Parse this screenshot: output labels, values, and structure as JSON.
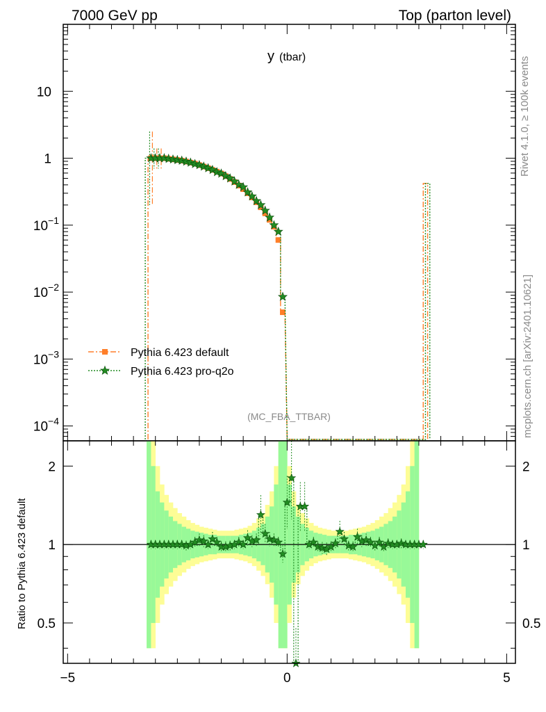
{
  "header": {
    "left": "7000 GeV pp",
    "right": "Top (parton level)"
  },
  "side": {
    "version": "Rivet 4.1.0, ≥ 100k events",
    "source": "mcplots.cern.ch [arXiv:2401.10621]"
  },
  "plot_title": {
    "main": "y",
    "sub": "(tbar)"
  },
  "analysis_label": "(MC_FBA_TTBAR)",
  "colors": {
    "default": "#ff7f2a",
    "proq2o": "#228b22",
    "band_inner": "#98f998",
    "band_outer": "#fdfd96"
  },
  "chart_data": [
    {
      "type": "line",
      "panel": "main",
      "title": "y (tbar)",
      "yscale": "log",
      "xlim": [
        -5.1,
        5.2
      ],
      "ylim": [
        6e-05,
        100
      ],
      "yticks": [
        {
          "value": 0.0001,
          "base": "10",
          "exp": "−4"
        },
        {
          "value": 0.001,
          "base": "10",
          "exp": "−3"
        },
        {
          "value": 0.01,
          "base": "10",
          "exp": "−2"
        },
        {
          "value": 0.1,
          "base": "10",
          "exp": "−1"
        },
        {
          "value": 1,
          "base": "1",
          "exp": ""
        },
        {
          "value": 10,
          "base": "10",
          "exp": ""
        }
      ],
      "legend": [
        "Pythia 6.423 default",
        "Pythia 6.423 pro-q2o"
      ],
      "series": [
        {
          "name": "Pythia 6.423 default",
          "style": "dash-dot",
          "marker": "square",
          "x": [
            -3.1,
            -3.0,
            -2.9,
            -2.8,
            -2.7,
            -2.6,
            -2.5,
            -2.4,
            -2.3,
            -2.2,
            -2.1,
            -2.0,
            -1.9,
            -1.8,
            -1.7,
            -1.6,
            -1.5,
            -1.4,
            -1.3,
            -1.2,
            -1.1,
            -1.0,
            -0.9,
            -0.8,
            -0.7,
            -0.6,
            -0.5,
            -0.4,
            -0.3,
            -0.2,
            -0.1
          ],
          "y": [
            1.0,
            1.0,
            1.0,
            1.0,
            0.98,
            0.96,
            0.94,
            0.92,
            0.89,
            0.86,
            0.83,
            0.79,
            0.75,
            0.71,
            0.67,
            0.63,
            0.59,
            0.54,
            0.49,
            0.44,
            0.39,
            0.345,
            0.3,
            0.26,
            0.22,
            0.185,
            0.15,
            0.12,
            0.095,
            0.06,
            0.005
          ],
          "spike": {
            "x": 3.15,
            "y": 0.42
          }
        },
        {
          "name": "Pythia 6.423 pro-q2o",
          "style": "dotted",
          "marker": "star",
          "x": [
            -3.1,
            -3.0,
            -2.9,
            -2.8,
            -2.7,
            -2.6,
            -2.5,
            -2.4,
            -2.3,
            -2.2,
            -2.1,
            -2.0,
            -1.9,
            -1.8,
            -1.7,
            -1.6,
            -1.5,
            -1.4,
            -1.3,
            -1.2,
            -1.1,
            -1.0,
            -0.9,
            -0.8,
            -0.7,
            -0.6,
            -0.5,
            -0.4,
            -0.3,
            -0.2,
            -0.1
          ],
          "y": [
            1.0,
            1.0,
            1.0,
            1.0,
            0.98,
            0.96,
            0.94,
            0.92,
            0.89,
            0.86,
            0.82,
            0.79,
            0.75,
            0.71,
            0.67,
            0.62,
            0.59,
            0.54,
            0.5,
            0.45,
            0.4,
            0.37,
            0.31,
            0.27,
            0.23,
            0.2,
            0.165,
            0.13,
            0.1,
            0.08,
            0.0085
          ],
          "spike": {
            "x": 3.2,
            "y": 0.42
          }
        }
      ]
    },
    {
      "type": "line",
      "panel": "ratio",
      "ylabel": "Ratio to Pythia 6.423 default",
      "yscale": "log",
      "xlim": [
        -5.1,
        5.2
      ],
      "ylim": [
        0.35,
        2.5
      ],
      "yticks": [
        {
          "value": 0.5,
          "label": "0.5"
        },
        {
          "value": 1,
          "label": "1"
        },
        {
          "value": 2,
          "label": "2"
        }
      ],
      "xticks": [
        {
          "value": -5,
          "label": "−5"
        },
        {
          "value": 0,
          "label": "0"
        },
        {
          "value": 5,
          "label": "5"
        }
      ],
      "bands": {
        "x_edges": [
          -3.2,
          -3.1,
          -3.0,
          -2.9,
          -2.8,
          -2.7,
          -2.6,
          -2.5,
          -2.4,
          -2.3,
          -2.2,
          -2.1,
          -2.0,
          -1.9,
          -1.8,
          -1.7,
          -1.6,
          -1.5,
          -1.4,
          -1.3,
          -1.2,
          -1.1,
          -1.0,
          -0.9,
          -0.8,
          -0.7,
          -0.6,
          -0.5,
          -0.4,
          -0.3,
          -0.2,
          -0.1,
          0.0,
          0.1,
          0.2,
          0.3,
          0.4,
          0.5,
          0.6,
          0.7,
          0.8,
          0.9,
          1.0,
          1.1,
          1.2,
          1.3,
          1.4,
          1.5,
          1.6,
          1.7,
          1.8,
          1.9,
          2.0,
          2.1,
          2.2,
          2.3,
          2.4,
          2.5,
          2.6,
          2.7,
          2.8,
          2.9,
          3.0,
          3.1,
          3.2
        ],
        "inner": [
          2.5,
          2.0,
          1.6,
          1.45,
          1.35,
          1.28,
          1.23,
          1.2,
          1.17,
          1.15,
          1.13,
          1.12,
          1.11,
          1.1,
          1.09,
          1.09,
          1.08,
          1.08,
          1.08,
          1.08,
          1.08,
          1.09,
          1.1,
          1.11,
          1.13,
          1.16,
          1.2,
          1.28,
          1.4,
          1.7,
          2.5,
          2.5,
          1.7,
          1.4,
          1.28,
          1.2,
          1.16,
          1.13,
          1.11,
          1.1,
          1.09,
          1.08,
          1.08,
          1.08,
          1.08,
          1.08,
          1.09,
          1.09,
          1.1,
          1.11,
          1.12,
          1.13,
          1.15,
          1.17,
          1.2,
          1.23,
          1.28,
          1.35,
          1.45,
          1.6,
          2.0,
          2.5
        ],
        "outer": [
          2.5,
          2.5,
          2.0,
          1.7,
          1.55,
          1.45,
          1.38,
          1.32,
          1.28,
          1.24,
          1.21,
          1.19,
          1.17,
          1.16,
          1.15,
          1.14,
          1.13,
          1.13,
          1.13,
          1.13,
          1.14,
          1.15,
          1.16,
          1.18,
          1.21,
          1.26,
          1.32,
          1.42,
          1.6,
          2.0,
          2.5,
          2.5,
          2.0,
          1.6,
          1.42,
          1.32,
          1.26,
          1.21,
          1.18,
          1.16,
          1.15,
          1.14,
          1.13,
          1.13,
          1.13,
          1.13,
          1.14,
          1.15,
          1.16,
          1.17,
          1.19,
          1.21,
          1.24,
          1.28,
          1.32,
          1.38,
          1.45,
          1.55,
          1.7,
          2.0,
          2.5,
          2.5
        ]
      },
      "series": [
        {
          "name": "Pythia 6.423 pro-q2o",
          "x": [
            -3.1,
            -3.0,
            -2.9,
            -2.8,
            -2.7,
            -2.6,
            -2.5,
            -2.4,
            -2.3,
            -2.2,
            -2.1,
            -2.0,
            -1.9,
            -1.8,
            -1.7,
            -1.6,
            -1.5,
            -1.4,
            -1.3,
            -1.2,
            -1.1,
            -1.0,
            -0.9,
            -0.8,
            -0.7,
            -0.6,
            -0.5,
            -0.4,
            -0.3,
            -0.2,
            -0.1,
            0.0,
            0.1,
            0.2,
            0.3,
            0.4,
            0.5,
            0.6,
            0.7,
            0.8,
            0.9,
            1.0,
            1.1,
            1.2,
            1.3,
            1.4,
            1.5,
            1.6,
            1.7,
            1.8,
            1.9,
            2.0,
            2.1,
            2.2,
            2.3,
            2.4,
            2.5,
            2.6,
            2.7,
            2.8,
            2.9,
            3.0,
            3.1
          ],
          "y": [
            1.0,
            1.0,
            1.0,
            1.0,
            1.0,
            1.0,
            1.0,
            1.0,
            0.99,
            1.0,
            1.02,
            1.04,
            1.03,
            1.0,
            1.05,
            1.02,
            0.98,
            0.98,
            0.99,
            1.0,
            1.02,
            1.0,
            1.06,
            1.03,
            1.04,
            1.3,
            1.1,
            1.05,
            1.04,
            1.02,
            0.92,
            1.45,
            1.8,
            0.35,
            1.4,
            1.4,
            1.0,
            1.02,
            0.98,
            0.97,
            0.96,
            0.98,
            1.01,
            1.12,
            1.05,
            0.99,
            0.98,
            1.07,
            1.03,
            1.04,
            1.02,
            0.99,
            1.02,
            0.98,
            1.01,
            1.0,
            1.0,
            1.01,
            1.0,
            1.0,
            1.0,
            1.0,
            1.0
          ]
        }
      ]
    }
  ]
}
